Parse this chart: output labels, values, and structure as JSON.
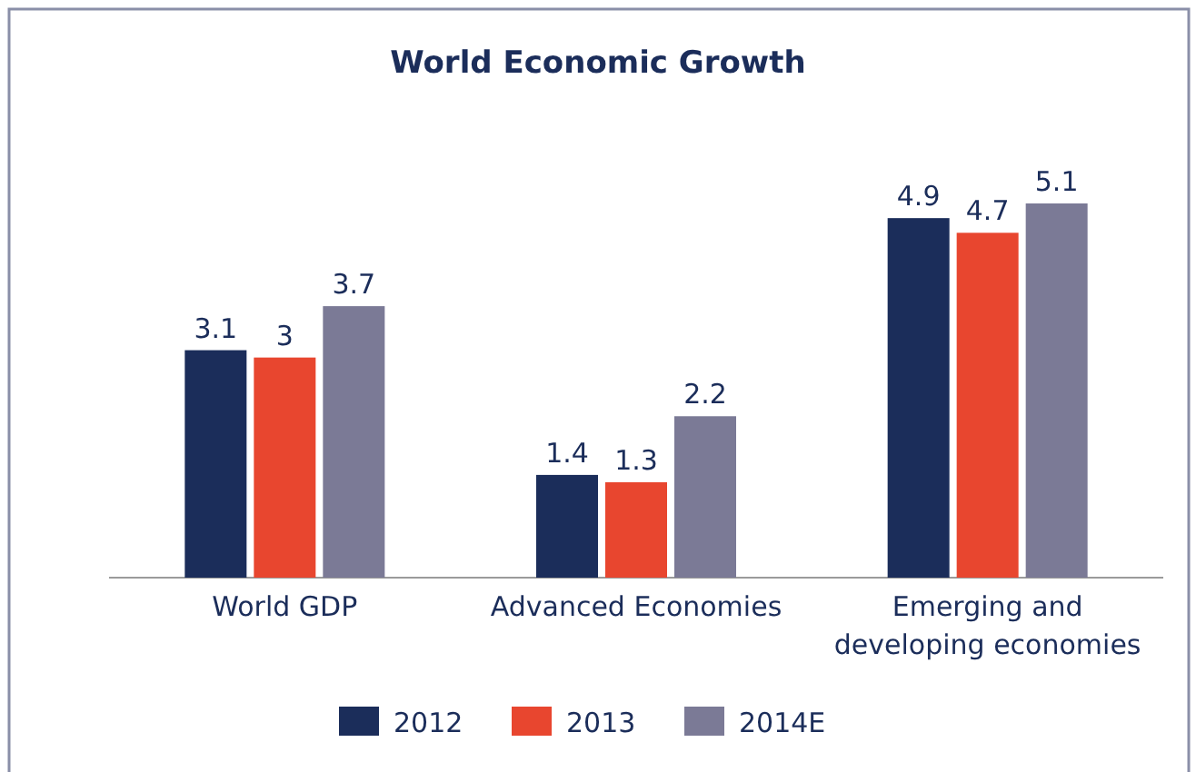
{
  "chart_data": {
    "type": "bar",
    "title": "World Economic Growth",
    "categories": [
      "World GDP",
      "Advanced Economies",
      "Emerging and developing economies"
    ],
    "series": [
      {
        "name": "2012",
        "color": "#1b2d5a",
        "values": [
          3.1,
          1.4,
          4.9
        ]
      },
      {
        "name": "2013",
        "color": "#e8462f",
        "values": [
          3,
          1.3,
          4.7
        ]
      },
      {
        "name": "2014E",
        "color": "#7b7a96",
        "values": [
          3.7,
          2.2,
          5.1
        ]
      }
    ],
    "data_labels": true,
    "legend": "bottom"
  }
}
